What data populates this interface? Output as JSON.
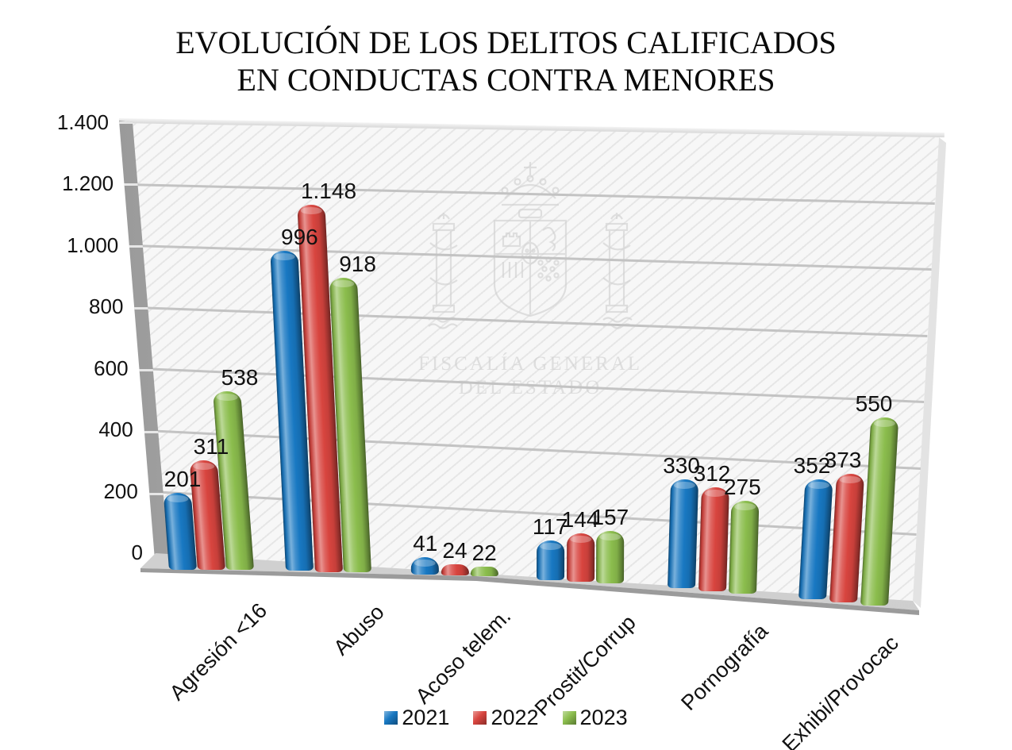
{
  "title": {
    "line1": "EVOLUCIÓN DE LOS DELITOS CALIFICADOS",
    "line2": "EN CONDUCTAS CONTRA MENORES"
  },
  "watermark": {
    "line1": "FISCALÍA GENERAL",
    "line2": "DEL ESTADO"
  },
  "chart_data": {
    "type": "bar",
    "style": "3d-cylinder",
    "title": "EVOLUCIÓN DE LOS DELITOS CALIFICADOS EN CONDUCTAS CONTRA MENORES",
    "categories": [
      "Agresión <16",
      "Abuso",
      "Acoso telem.",
      "Prostit/Corrup",
      "Pornografía",
      "Exhibi/Provocac"
    ],
    "series": [
      {
        "name": "2021",
        "color": "#1878C2",
        "values": [
          201,
          996,
          41,
          117,
          330,
          352
        ],
        "labels": [
          "201",
          "996",
          "41",
          "117",
          "330",
          "352"
        ]
      },
      {
        "name": "2022",
        "color": "#D8453F",
        "values": [
          311,
          1148,
          24,
          144,
          312,
          373
        ],
        "labels": [
          "311",
          "1.148",
          "24",
          "144",
          "312",
          "373"
        ]
      },
      {
        "name": "2023",
        "color": "#8BBD4D",
        "values": [
          538,
          918,
          22,
          157,
          275,
          550
        ],
        "labels": [
          "538",
          "918",
          "22",
          "157",
          "275",
          "550"
        ]
      }
    ],
    "yticks": [
      "0",
      "200",
      "400",
      "600",
      "800",
      "1.000",
      "1.200",
      "1.400"
    ],
    "ylim": [
      0,
      1400
    ],
    "xlabel": "",
    "ylabel": "",
    "grid": true,
    "legend_position": "bottom",
    "gridline_color": "#c3c3c3"
  }
}
